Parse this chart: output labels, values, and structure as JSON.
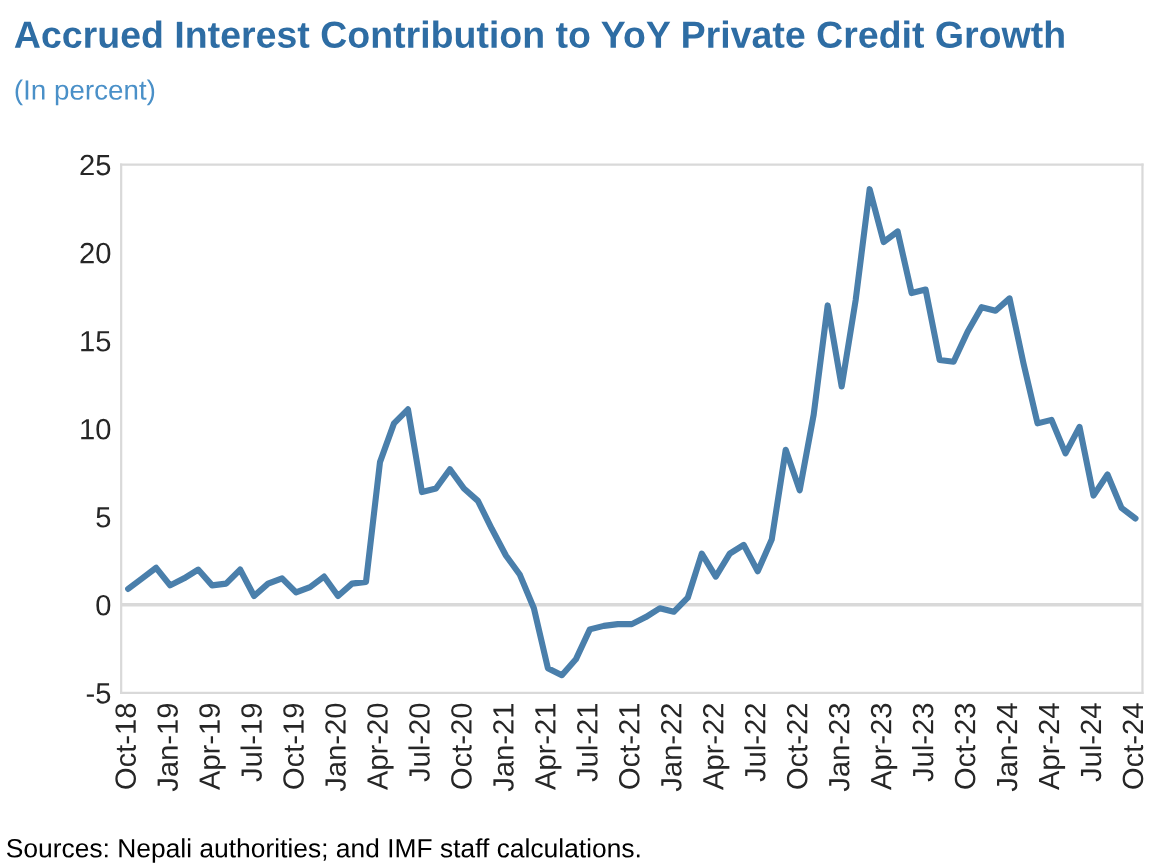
{
  "chart_data": {
    "type": "line",
    "title": "Accrued Interest Contribution to YoY Private Credit Growth",
    "subtitle": "(In percent)",
    "categories": [
      "Oct-18",
      null,
      null,
      "Jan-19",
      null,
      null,
      "Apr-19",
      null,
      null,
      "Jul-19",
      null,
      null,
      "Oct-19",
      null,
      null,
      "Jan-20",
      null,
      null,
      "Apr-20",
      null,
      null,
      "Jul-20",
      null,
      null,
      "Oct-20",
      null,
      null,
      "Jan-21",
      null,
      null,
      "Apr-21",
      null,
      null,
      "Jul-21",
      null,
      null,
      "Oct-21",
      null,
      null,
      "Jan-22",
      null,
      null,
      "Apr-22",
      null,
      null,
      "Jul-22",
      null,
      null,
      "Oct-22",
      null,
      null,
      "Jan-23",
      null,
      null,
      "Apr-23",
      null,
      null,
      "Jul-23",
      null,
      null,
      "Oct-23",
      null,
      null,
      "Jan-24",
      null,
      null,
      "Apr-24",
      null,
      null,
      "Jul-24",
      null,
      null,
      "Oct-24"
    ],
    "series": [
      {
        "color": "#4a7fab",
        "values": [
          0.9,
          1.5,
          2.1,
          1.1,
          1.5,
          2.0,
          1.1,
          1.2,
          2.0,
          0.5,
          1.2,
          1.5,
          0.7,
          1.0,
          1.6,
          0.5,
          1.2,
          1.3,
          8.1,
          10.3,
          11.1,
          6.4,
          6.6,
          7.7,
          6.6,
          5.9,
          4.3,
          2.8,
          1.7,
          -0.2,
          -3.6,
          -4.0,
          -3.1,
          -1.4,
          -1.2,
          -1.1,
          -1.1,
          -0.7,
          -0.2,
          -0.4,
          0.4,
          2.9,
          1.6,
          2.9,
          3.4,
          1.9,
          3.7,
          8.8,
          6.5,
          10.8,
          17.0,
          12.4,
          17.3,
          23.6,
          20.6,
          21.2,
          17.7,
          17.9,
          13.9,
          13.8,
          15.5,
          16.9,
          16.7,
          17.4,
          13.7,
          10.3,
          10.5,
          8.6,
          10.1,
          6.2,
          7.4,
          5.5,
          4.9
        ]
      }
    ],
    "ylim": [
      -5,
      25
    ],
    "yticks": [
      -5,
      0,
      5,
      10,
      15,
      20,
      25
    ],
    "ref_lines": [
      {
        "axis": "y",
        "value": 0,
        "color": "#d9d9d9"
      }
    ],
    "grid": false,
    "legend": false,
    "line_style": "solid",
    "marker": "none",
    "annotations": [
      "Sources: Nepali authorities; and IMF staff calculations."
    ]
  }
}
